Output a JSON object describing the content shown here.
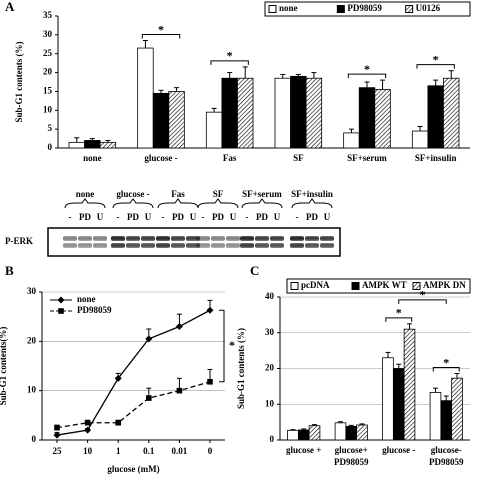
{
  "chart_data": [
    {
      "type": "bar",
      "panel_label": "A",
      "y_label": "Sub-G1 contents (%)",
      "categories": [
        [
          "none"
        ],
        [
          "glucose -"
        ],
        [
          "Fas"
        ],
        [
          "SF"
        ],
        [
          "SF+serum"
        ],
        [
          "SF+insulin"
        ]
      ],
      "series": [
        {
          "name": "none",
          "color": "#ffffff",
          "values": [
            1.5,
            26.5,
            9.5,
            18.5,
            4,
            4.5
          ],
          "errors": [
            1.2,
            2,
            1,
            1,
            1,
            1.2
          ]
        },
        {
          "name": "PD98059",
          "color": "#000000",
          "values": [
            2,
            14.5,
            18.5,
            19,
            16,
            16.5
          ],
          "errors": [
            0.5,
            0.8,
            1.5,
            0.5,
            1.5,
            1.5
          ]
        },
        {
          "name": "U0126",
          "color": "#808080",
          "hatch": true,
          "values": [
            1.5,
            15,
            18.5,
            18.5,
            15.5,
            18.5
          ],
          "errors": [
            0.5,
            1,
            3,
            1.5,
            2.5,
            2
          ]
        }
      ],
      "ylim": [
        0,
        35
      ],
      "yticks": [
        0,
        5,
        10,
        15,
        20,
        25,
        30,
        35
      ],
      "legend": "top-right",
      "annotations": [
        "*",
        "*",
        "*",
        "*"
      ]
    },
    {
      "type": "line",
      "panel_label": "B",
      "y_label": "Sub-G1 contents(%)",
      "x_label": "glucose (mM)",
      "categories": [
        "25",
        "10",
        "1",
        "0.1",
        "0.01",
        "0"
      ],
      "series": [
        {
          "name": "none",
          "color": "#000000",
          "marker": "diamond",
          "values": [
            1,
            2,
            12.5,
            20.5,
            23,
            26.3
          ],
          "errors": [
            0.5,
            0.3,
            1,
            2,
            2.5,
            2
          ]
        },
        {
          "name": "PD98059",
          "color": "#000000",
          "marker": "square",
          "dashed": true,
          "values": [
            2.5,
            3.5,
            3.5,
            8.5,
            10,
            11.8
          ],
          "errors": [
            0.5,
            0.5,
            0.5,
            2,
            2.5,
            2.5
          ]
        }
      ],
      "ylim": [
        0,
        30
      ],
      "yticks": [
        0,
        10,
        20,
        30
      ],
      "grid": true,
      "legend": "top-left",
      "annotations": [
        "*"
      ]
    },
    {
      "type": "bar",
      "panel_label": "C",
      "y_label": "Sub-G1 contents (%)",
      "categories": [
        [
          "glucose +"
        ],
        [
          "glucose+",
          "PD98059"
        ],
        [
          "glucose -"
        ],
        [
          "glucose-",
          "PD98059"
        ]
      ],
      "series": [
        {
          "name": "pcDNA",
          "color": "#ffffff",
          "values": [
            2.7,
            4.8,
            23,
            13.3
          ],
          "errors": [
            0.2,
            0.3,
            1.5,
            1.2
          ]
        },
        {
          "name": "AMPK WT",
          "color": "#000000",
          "values": [
            2.8,
            3.8,
            20,
            11
          ],
          "errors": [
            0.3,
            0.3,
            1.2,
            1.3
          ]
        },
        {
          "name": "AMPK DN",
          "color": "#808080",
          "hatch": true,
          "values": [
            4,
            4.2,
            31,
            17.3
          ],
          "errors": [
            0.3,
            0.3,
            1.5,
            1.3
          ]
        }
      ],
      "ylim": [
        0,
        40
      ],
      "yticks": [
        0,
        10,
        20,
        30,
        40
      ],
      "grid": true,
      "legend": "top",
      "annotations": [
        "*",
        "*",
        "*"
      ]
    }
  ],
  "blot": {
    "groups": [
      "none",
      "glucose -",
      "Fas",
      "SF",
      "SF+serum",
      "SF+insulin"
    ],
    "lanes": [
      "-",
      "PD",
      "U"
    ],
    "label": "P-ERK"
  }
}
